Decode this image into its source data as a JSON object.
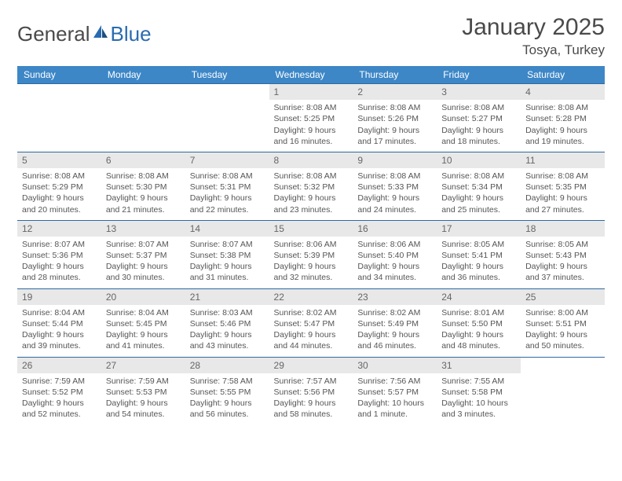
{
  "brand": {
    "part1": "General",
    "part2": "Blue"
  },
  "title": "January 2025",
  "location": "Tosya, Turkey",
  "colors": {
    "header_bg": "#3d87c7",
    "header_text": "#ffffff",
    "row_border": "#2d6aa3",
    "daynum_bg": "#e8e8e8",
    "text": "#555555",
    "title_text": "#4a4a4a"
  },
  "weekdays": [
    "Sunday",
    "Monday",
    "Tuesday",
    "Wednesday",
    "Thursday",
    "Friday",
    "Saturday"
  ],
  "weeks": [
    [
      {
        "n": "",
        "sr": "",
        "ss": "",
        "d1": "",
        "d2": ""
      },
      {
        "n": "",
        "sr": "",
        "ss": "",
        "d1": "",
        "d2": ""
      },
      {
        "n": "",
        "sr": "",
        "ss": "",
        "d1": "",
        "d2": ""
      },
      {
        "n": "1",
        "sr": "Sunrise: 8:08 AM",
        "ss": "Sunset: 5:25 PM",
        "d1": "Daylight: 9 hours",
        "d2": "and 16 minutes."
      },
      {
        "n": "2",
        "sr": "Sunrise: 8:08 AM",
        "ss": "Sunset: 5:26 PM",
        "d1": "Daylight: 9 hours",
        "d2": "and 17 minutes."
      },
      {
        "n": "3",
        "sr": "Sunrise: 8:08 AM",
        "ss": "Sunset: 5:27 PM",
        "d1": "Daylight: 9 hours",
        "d2": "and 18 minutes."
      },
      {
        "n": "4",
        "sr": "Sunrise: 8:08 AM",
        "ss": "Sunset: 5:28 PM",
        "d1": "Daylight: 9 hours",
        "d2": "and 19 minutes."
      }
    ],
    [
      {
        "n": "5",
        "sr": "Sunrise: 8:08 AM",
        "ss": "Sunset: 5:29 PM",
        "d1": "Daylight: 9 hours",
        "d2": "and 20 minutes."
      },
      {
        "n": "6",
        "sr": "Sunrise: 8:08 AM",
        "ss": "Sunset: 5:30 PM",
        "d1": "Daylight: 9 hours",
        "d2": "and 21 minutes."
      },
      {
        "n": "7",
        "sr": "Sunrise: 8:08 AM",
        "ss": "Sunset: 5:31 PM",
        "d1": "Daylight: 9 hours",
        "d2": "and 22 minutes."
      },
      {
        "n": "8",
        "sr": "Sunrise: 8:08 AM",
        "ss": "Sunset: 5:32 PM",
        "d1": "Daylight: 9 hours",
        "d2": "and 23 minutes."
      },
      {
        "n": "9",
        "sr": "Sunrise: 8:08 AM",
        "ss": "Sunset: 5:33 PM",
        "d1": "Daylight: 9 hours",
        "d2": "and 24 minutes."
      },
      {
        "n": "10",
        "sr": "Sunrise: 8:08 AM",
        "ss": "Sunset: 5:34 PM",
        "d1": "Daylight: 9 hours",
        "d2": "and 25 minutes."
      },
      {
        "n": "11",
        "sr": "Sunrise: 8:08 AM",
        "ss": "Sunset: 5:35 PM",
        "d1": "Daylight: 9 hours",
        "d2": "and 27 minutes."
      }
    ],
    [
      {
        "n": "12",
        "sr": "Sunrise: 8:07 AM",
        "ss": "Sunset: 5:36 PM",
        "d1": "Daylight: 9 hours",
        "d2": "and 28 minutes."
      },
      {
        "n": "13",
        "sr": "Sunrise: 8:07 AM",
        "ss": "Sunset: 5:37 PM",
        "d1": "Daylight: 9 hours",
        "d2": "and 30 minutes."
      },
      {
        "n": "14",
        "sr": "Sunrise: 8:07 AM",
        "ss": "Sunset: 5:38 PM",
        "d1": "Daylight: 9 hours",
        "d2": "and 31 minutes."
      },
      {
        "n": "15",
        "sr": "Sunrise: 8:06 AM",
        "ss": "Sunset: 5:39 PM",
        "d1": "Daylight: 9 hours",
        "d2": "and 32 minutes."
      },
      {
        "n": "16",
        "sr": "Sunrise: 8:06 AM",
        "ss": "Sunset: 5:40 PM",
        "d1": "Daylight: 9 hours",
        "d2": "and 34 minutes."
      },
      {
        "n": "17",
        "sr": "Sunrise: 8:05 AM",
        "ss": "Sunset: 5:41 PM",
        "d1": "Daylight: 9 hours",
        "d2": "and 36 minutes."
      },
      {
        "n": "18",
        "sr": "Sunrise: 8:05 AM",
        "ss": "Sunset: 5:43 PM",
        "d1": "Daylight: 9 hours",
        "d2": "and 37 minutes."
      }
    ],
    [
      {
        "n": "19",
        "sr": "Sunrise: 8:04 AM",
        "ss": "Sunset: 5:44 PM",
        "d1": "Daylight: 9 hours",
        "d2": "and 39 minutes."
      },
      {
        "n": "20",
        "sr": "Sunrise: 8:04 AM",
        "ss": "Sunset: 5:45 PM",
        "d1": "Daylight: 9 hours",
        "d2": "and 41 minutes."
      },
      {
        "n": "21",
        "sr": "Sunrise: 8:03 AM",
        "ss": "Sunset: 5:46 PM",
        "d1": "Daylight: 9 hours",
        "d2": "and 43 minutes."
      },
      {
        "n": "22",
        "sr": "Sunrise: 8:02 AM",
        "ss": "Sunset: 5:47 PM",
        "d1": "Daylight: 9 hours",
        "d2": "and 44 minutes."
      },
      {
        "n": "23",
        "sr": "Sunrise: 8:02 AM",
        "ss": "Sunset: 5:49 PM",
        "d1": "Daylight: 9 hours",
        "d2": "and 46 minutes."
      },
      {
        "n": "24",
        "sr": "Sunrise: 8:01 AM",
        "ss": "Sunset: 5:50 PM",
        "d1": "Daylight: 9 hours",
        "d2": "and 48 minutes."
      },
      {
        "n": "25",
        "sr": "Sunrise: 8:00 AM",
        "ss": "Sunset: 5:51 PM",
        "d1": "Daylight: 9 hours",
        "d2": "and 50 minutes."
      }
    ],
    [
      {
        "n": "26",
        "sr": "Sunrise: 7:59 AM",
        "ss": "Sunset: 5:52 PM",
        "d1": "Daylight: 9 hours",
        "d2": "and 52 minutes."
      },
      {
        "n": "27",
        "sr": "Sunrise: 7:59 AM",
        "ss": "Sunset: 5:53 PM",
        "d1": "Daylight: 9 hours",
        "d2": "and 54 minutes."
      },
      {
        "n": "28",
        "sr": "Sunrise: 7:58 AM",
        "ss": "Sunset: 5:55 PM",
        "d1": "Daylight: 9 hours",
        "d2": "and 56 minutes."
      },
      {
        "n": "29",
        "sr": "Sunrise: 7:57 AM",
        "ss": "Sunset: 5:56 PM",
        "d1": "Daylight: 9 hours",
        "d2": "and 58 minutes."
      },
      {
        "n": "30",
        "sr": "Sunrise: 7:56 AM",
        "ss": "Sunset: 5:57 PM",
        "d1": "Daylight: 10 hours",
        "d2": "and 1 minute."
      },
      {
        "n": "31",
        "sr": "Sunrise: 7:55 AM",
        "ss": "Sunset: 5:58 PM",
        "d1": "Daylight: 10 hours",
        "d2": "and 3 minutes."
      },
      {
        "n": "",
        "sr": "",
        "ss": "",
        "d1": "",
        "d2": ""
      }
    ]
  ]
}
